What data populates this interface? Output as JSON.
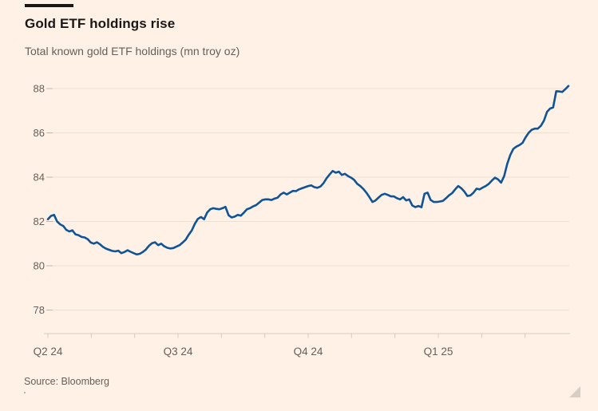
{
  "page": {
    "background": "#fff1e5"
  },
  "header": {
    "title": "Gold ETF holdings rise",
    "subtitle": "Total known gold ETF holdings (mn troy oz)"
  },
  "footer": {
    "source": "Source: Bloomberg"
  },
  "icons": {
    "resize_handle": "resize-grip-triangle"
  },
  "chart_data": {
    "type": "line",
    "title": "Gold ETF holdings rise",
    "subtitle": "Total known gold ETF holdings (mn troy oz)",
    "ylabel": "mn troy oz",
    "y_ticks": [
      88,
      86,
      84,
      82,
      80,
      78
    ],
    "ylim": [
      77.0,
      88.7
    ],
    "x_quarter_labels": [
      "Q2 24",
      "Q3 24",
      "Q4 24",
      "Q1 25"
    ],
    "x_range": "Apr 2024 - Apr 2025",
    "monthly_tick_count": 12,
    "grid": "horizontal",
    "legend": "none",
    "colors": {
      "line": "#0f5499",
      "grid": "#efe0d1",
      "tick": "#c3b6aa",
      "axis": "#d9cabc",
      "text": "#66605c",
      "background": "#fff1e5"
    },
    "series": [
      {
        "name": "Total known gold ETF holdings (mn troy oz)",
        "values": [
          82.1,
          82.25,
          82.3,
          82.0,
          81.87,
          81.8,
          81.62,
          81.55,
          81.6,
          81.42,
          81.38,
          81.3,
          81.28,
          81.2,
          81.05,
          81.0,
          81.06,
          80.97,
          80.85,
          80.77,
          80.72,
          80.67,
          80.65,
          80.68,
          80.57,
          80.62,
          80.7,
          80.63,
          80.57,
          80.51,
          80.54,
          80.62,
          80.73,
          80.9,
          81.02,
          81.06,
          80.93,
          81.0,
          80.88,
          80.81,
          80.78,
          80.8,
          80.87,
          80.93,
          81.05,
          81.18,
          81.4,
          81.6,
          81.9,
          82.12,
          82.2,
          82.1,
          82.4,
          82.55,
          82.6,
          82.57,
          82.55,
          82.6,
          82.66,
          82.28,
          82.18,
          82.22,
          82.3,
          82.26,
          82.4,
          82.55,
          82.6,
          82.68,
          82.74,
          82.85,
          82.97,
          83.0,
          83.0,
          82.97,
          83.03,
          83.07,
          83.22,
          83.3,
          83.22,
          83.3,
          83.38,
          83.37,
          83.45,
          83.5,
          83.55,
          83.6,
          83.63,
          83.55,
          83.52,
          83.58,
          83.73,
          83.95,
          84.12,
          84.28,
          84.2,
          84.25,
          84.1,
          84.15,
          84.05,
          83.98,
          83.88,
          83.7,
          83.6,
          83.47,
          83.3,
          83.1,
          82.88,
          82.95,
          83.08,
          83.2,
          83.25,
          83.2,
          83.13,
          83.13,
          83.05,
          83.0,
          83.1,
          82.95,
          83.0,
          82.72,
          82.65,
          82.7,
          82.64,
          83.25,
          83.3,
          82.97,
          82.88,
          82.88,
          82.9,
          82.93,
          83.05,
          83.18,
          83.28,
          83.45,
          83.6,
          83.5,
          83.35,
          83.15,
          83.18,
          83.3,
          83.48,
          83.45,
          83.53,
          83.6,
          83.7,
          83.85,
          83.98,
          83.9,
          83.75,
          84.05,
          84.6,
          85.0,
          85.28,
          85.38,
          85.45,
          85.55,
          85.8,
          86.0,
          86.14,
          86.19,
          86.19,
          86.32,
          86.55,
          86.95,
          87.1,
          87.15,
          87.88,
          87.87,
          87.85,
          87.98,
          88.12
        ]
      }
    ]
  }
}
